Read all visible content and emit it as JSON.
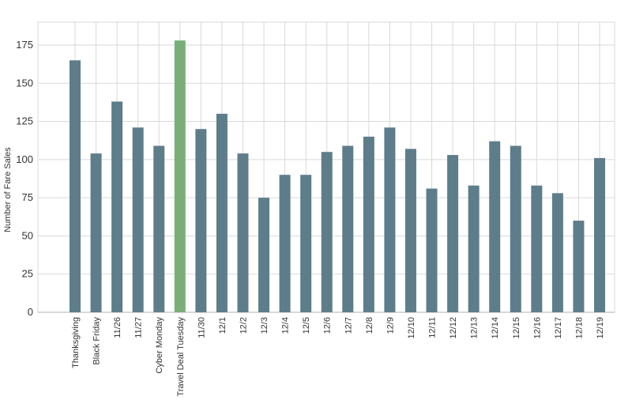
{
  "chart_data": {
    "type": "bar",
    "title": "",
    "xlabel": "",
    "ylabel": "Number of Fare Sales",
    "ylim": [
      0,
      190
    ],
    "yticks": [
      0,
      25,
      50,
      75,
      100,
      125,
      150,
      175
    ],
    "grid": true,
    "legend": "none",
    "categories": [
      "Thanksgiving",
      "Black Friday",
      "11/26",
      "11/27",
      "Cyber Monday",
      "Travel Deal Tuesday",
      "11/30",
      "12/1",
      "12/2",
      "12/3",
      "12/4",
      "12/5",
      "12/6",
      "12/7",
      "12/8",
      "12/9",
      "12/10",
      "12/11",
      "12/12",
      "12/13",
      "12/14",
      "12/15",
      "12/16",
      "12/17",
      "12/18",
      "12/19"
    ],
    "values": [
      165,
      104,
      138,
      121,
      109,
      178,
      120,
      130,
      104,
      75,
      90,
      90,
      105,
      109,
      115,
      121,
      107,
      81,
      103,
      83,
      112,
      109,
      83,
      78,
      60,
      101
    ],
    "highlight_category": "Travel Deal Tuesday",
    "colors": {
      "bar": "#5e7d8a",
      "highlight": "#79ae78",
      "grid": "#d9d9d9",
      "axis": "#b0b0b0"
    }
  }
}
